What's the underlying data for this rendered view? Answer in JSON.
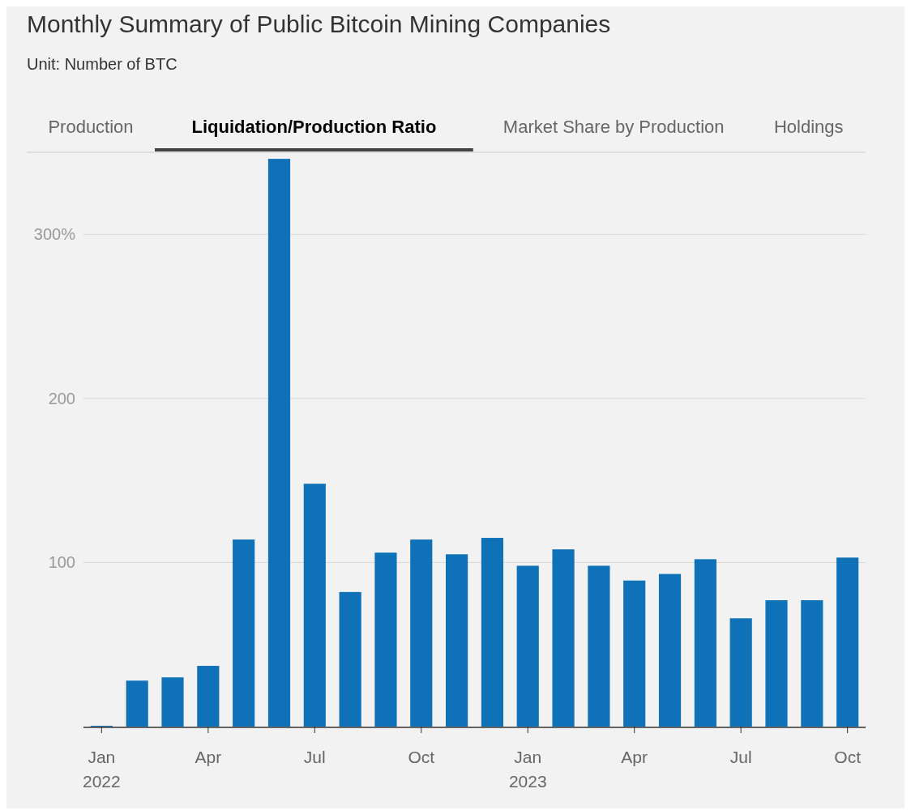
{
  "chart_data": {
    "type": "bar",
    "title": "Monthly Summary of Public Bitcoin Mining Companies",
    "subtitle": "Unit: Number of BTC",
    "annotations": [
      "Production",
      "Liquidation/Production Ratio",
      "Market Share by Production",
      "Holdings"
    ],
    "categories": [
      "Jan 2022",
      null,
      null,
      "Apr",
      null,
      null,
      "Jul",
      null,
      null,
      "Oct",
      null,
      null,
      "Jan 2023",
      null,
      null,
      "Apr",
      null,
      null,
      "Jul",
      null,
      null,
      "Oct"
    ],
    "values": [
      0.5,
      28,
      30,
      37,
      114,
      346,
      148,
      82,
      106,
      114,
      105,
      115,
      98,
      108,
      98,
      89,
      93,
      102,
      66,
      77,
      77,
      103
    ],
    "color": "#0f72b9",
    "ylim": [
      0,
      350
    ],
    "yticks": [
      100,
      200,
      {
        "value": 300,
        "label": "300%"
      }
    ],
    "grid": "y"
  }
}
